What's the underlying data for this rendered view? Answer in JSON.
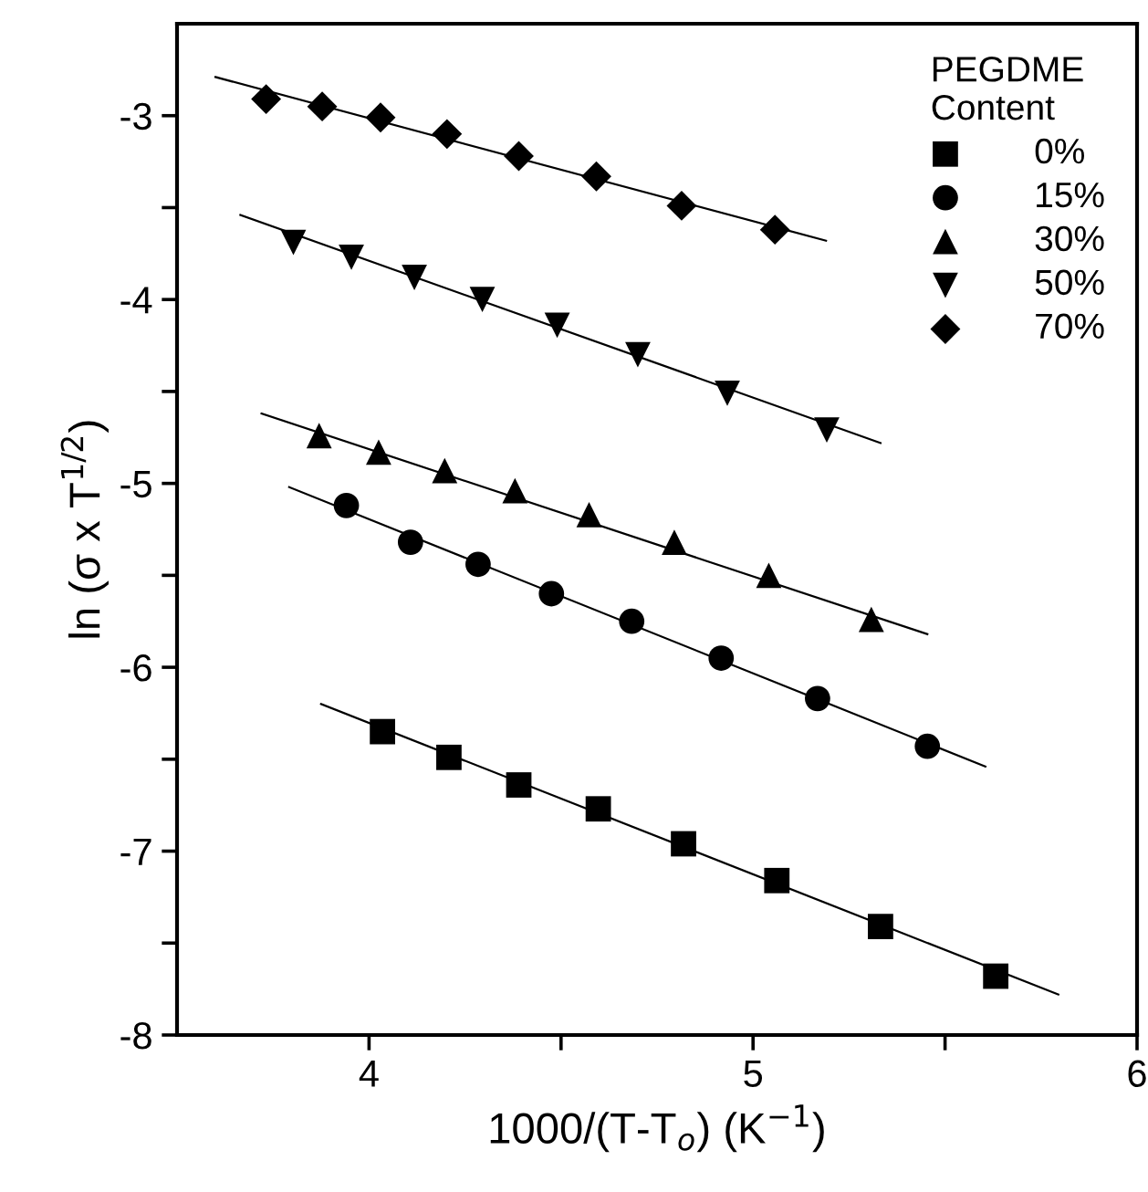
{
  "chart_data": {
    "type": "scatter",
    "xlabel": "1000/(T-T$_{o}$) (K$^{−1}$)",
    "ylabel": "ln (σ x T$^{1/2}$)",
    "legend_title": "PEGDME\nContent",
    "legend": "top right",
    "grid": false,
    "xlim": [
      3.5,
      6
    ],
    "xticks": [
      4,
      {
        "value": 4.5,
        "label": null
      },
      5,
      {
        "value": 5.5,
        "label": null
      },
      6
    ],
    "ylim": [
      -8,
      -2.5
    ],
    "yticks": [
      -8,
      {
        "value": -7.5,
        "label": null
      },
      -7,
      {
        "value": -6.5,
        "label": null
      },
      -6,
      {
        "value": -5.5,
        "label": null
      },
      -5,
      {
        "value": -4.5,
        "label": null
      },
      -4,
      {
        "value": -3.5,
        "label": null
      },
      -3
    ],
    "series": [
      {
        "name": "0%",
        "color": "#000000",
        "marker": "square",
        "x": [
          4.035,
          4.208,
          4.39,
          4.597,
          4.819,
          5.062,
          5.332,
          5.632
        ],
        "values": [
          -6.35,
          -6.49,
          -6.64,
          -6.77,
          -6.96,
          -7.16,
          -7.41,
          -7.68
        ]
      },
      {
        "name": "15%",
        "color": "#000000",
        "marker": "circle",
        "x": [
          3.941,
          4.108,
          4.284,
          4.475,
          4.684,
          4.917,
          5.168,
          5.454
        ],
        "values": [
          -5.12,
          -5.32,
          -5.44,
          -5.6,
          -5.75,
          -5.95,
          -6.17,
          -6.43
        ]
      },
      {
        "name": "30%",
        "color": "#000000",
        "marker": "triangle",
        "x": [
          3.87,
          4.025,
          4.197,
          4.38,
          4.573,
          4.795,
          5.041,
          5.308
        ],
        "values": [
          -4.74,
          -4.83,
          -4.93,
          -5.04,
          -5.17,
          -5.32,
          -5.5,
          -5.74
        ]
      },
      {
        "name": "50%",
        "color": "#000000",
        "marker": "triangle_down",
        "x": [
          3.803,
          3.954,
          4.118,
          4.295,
          4.49,
          4.7,
          4.933,
          5.192
        ],
        "values": [
          -3.69,
          -3.77,
          -3.88,
          -4.0,
          -4.14,
          -4.3,
          -4.51,
          -4.71
        ]
      },
      {
        "name": "70%",
        "color": "#000000",
        "marker": "diamond",
        "x": [
          3.732,
          3.878,
          4.03,
          4.203,
          4.39,
          4.592,
          4.814,
          5.057
        ],
        "values": [
          -2.91,
          -2.95,
          -3.01,
          -3.1,
          -3.22,
          -3.33,
          -3.49,
          -3.62
        ]
      },
      {
        "type": "line",
        "color": "#000000",
        "line_style": "solid",
        "x": [
          3.875,
          5.795
        ],
        "values": [
          -6.2,
          -7.78
        ]
      },
      {
        "type": "line",
        "color": "#000000",
        "line_style": "solid",
        "x": [
          3.792,
          5.605
        ],
        "values": [
          -5.02,
          -6.54
        ]
      },
      {
        "type": "line",
        "color": "#000000",
        "line_style": "solid",
        "x": [
          3.72,
          5.454
        ],
        "values": [
          -4.62,
          -5.82
        ]
      },
      {
        "type": "line",
        "color": "#000000",
        "line_style": "solid",
        "x": [
          3.665,
          5.332
        ],
        "values": [
          -3.54,
          -4.78
        ]
      },
      {
        "type": "line",
        "color": "#000000",
        "line_style": "solid",
        "x": [
          3.6,
          5.19
        ],
        "values": [
          -2.79,
          -3.68
        ]
      }
    ]
  }
}
